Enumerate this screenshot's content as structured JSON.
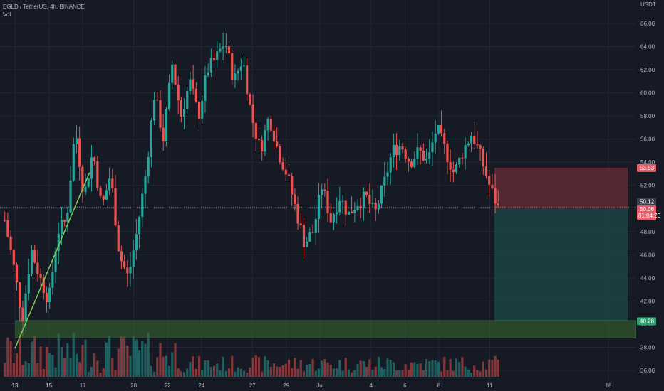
{
  "legend": {
    "symbol_line": "EGLD / TetherUS, 4h, BINANCE",
    "volume_label": "Vol"
  },
  "colors": {
    "background": "#161a25",
    "grid": "#232733",
    "up": "#26a69a",
    "down": "#ef5350",
    "trendline": "#7ecb5a",
    "zone_border": "#4caf50",
    "zone_fill": "#3c6a2f",
    "loss_zone": "#6b2d35",
    "profit_zone": "#1f4a48",
    "text": "#b2b5be"
  },
  "chart_data": {
    "type": "candlestick",
    "title": "EGLD / TetherUS, 4h, BINANCE",
    "currency": "USDT",
    "y_ticks": [
      "66.00",
      "64.00",
      "62.00",
      "60.00",
      "58.00",
      "56.00",
      "54.00",
      "52.00",
      "50.00",
      "48.00",
      "46.00",
      "44.00",
      "42.00",
      "40.00",
      "38.00",
      "36.00"
    ],
    "ylim": [
      35.5,
      67.3
    ],
    "x_ticks": [
      "13",
      "15",
      "17",
      "20",
      "22",
      "24",
      "27",
      "29",
      "Jul",
      "4",
      "6",
      "8",
      "11",
      "13",
      "15",
      "18"
    ],
    "price_labels": {
      "stop_loss": "53.53",
      "last_close": "50.12",
      "current": "50.06",
      "countdown": "01:04:26",
      "target": "40.28"
    },
    "trendline": {
      "from": {
        "x_tick": "13",
        "price": 37.9
      },
      "to": {
        "x_tick": "15",
        "x_offset_days": 2.4,
        "price": 53.1
      }
    },
    "support_zone": {
      "low": 38.8,
      "high": 40.3
    },
    "position": {
      "entry": 50.0,
      "stop": 53.53,
      "target": 40.28
    },
    "candle_path": [
      [
        "13",
        49
      ],
      [
        "13",
        45
      ],
      [
        "13",
        40.5
      ],
      [
        "13",
        46.5
      ],
      [
        "15",
        44
      ],
      [
        "15",
        42
      ],
      [
        "15",
        48
      ],
      [
        "17",
        49
      ],
      [
        "17",
        57
      ],
      [
        "17",
        51
      ],
      [
        "17",
        55
      ],
      [
        "17",
        50
      ],
      [
        "17",
        53
      ],
      [
        "17",
        46
      ],
      [
        "20",
        44
      ],
      [
        "20",
        48
      ],
      [
        "20",
        53
      ],
      [
        "20",
        60
      ],
      [
        "20",
        56
      ],
      [
        "22",
        62.5
      ],
      [
        "22",
        58
      ],
      [
        "22",
        61
      ],
      [
        "24",
        58
      ],
      [
        "24",
        62
      ],
      [
        "24",
        63
      ],
      [
        "24",
        64.5
      ],
      [
        "24",
        61
      ],
      [
        "27",
        63
      ],
      [
        "27",
        58
      ],
      [
        "27",
        55
      ],
      [
        "27",
        58
      ],
      [
        "27",
        55
      ],
      [
        "27",
        53
      ],
      [
        "29",
        50
      ],
      [
        "29",
        47
      ],
      [
        "29",
        48
      ],
      [
        "29",
        52
      ],
      [
        "29",
        49
      ],
      [
        "29",
        51
      ],
      [
        "Jul",
        49.5
      ],
      [
        "Jul",
        50.5
      ],
      [
        "Jul",
        51
      ],
      [
        "4",
        49.5
      ],
      [
        "4",
        52
      ],
      [
        "6",
        55
      ],
      [
        "6",
        55.5
      ],
      [
        "6",
        54
      ],
      [
        "6",
        55
      ],
      [
        "6",
        54
      ],
      [
        "8",
        57
      ],
      [
        "8",
        55
      ],
      [
        "8",
        53
      ],
      [
        "8",
        55
      ],
      [
        "8",
        56.5
      ],
      [
        "8",
        54.5
      ],
      [
        "11",
        52
      ],
      [
        "11",
        50.06
      ]
    ]
  }
}
